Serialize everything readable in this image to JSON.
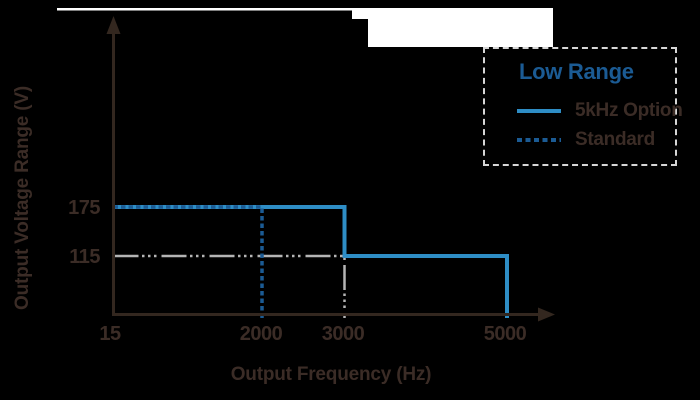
{
  "chart_data": {
    "type": "line",
    "subtype": "step",
    "xlabel": "Output Frequency (Hz)",
    "ylabel": "Output Voltage Range (V)",
    "x_range": [
      15,
      5000
    ],
    "y_range": [
      0,
      200
    ],
    "grid": false,
    "x_ticks": [
      {
        "value": 15,
        "label": "15"
      },
      {
        "value": 2000,
        "label": "2000"
      },
      {
        "value": 3000,
        "label": "3000"
      },
      {
        "value": 5000,
        "label": "5000"
      }
    ],
    "y_ticks": [
      {
        "value": 175,
        "label": "175"
      },
      {
        "value": 115,
        "label": "115"
      }
    ],
    "series": [
      {
        "name": "5kHz Option",
        "style": "solid",
        "color": "#2e8dc5",
        "points": [
          [
            15,
            175
          ],
          [
            3000,
            175
          ],
          [
            3000,
            115
          ],
          [
            5000,
            115
          ],
          [
            5000,
            0
          ]
        ]
      },
      {
        "name": "Standard",
        "style": "dashed",
        "color": "#1b5b94",
        "points": [
          [
            15,
            175
          ],
          [
            2000,
            175
          ],
          [
            2000,
            0
          ]
        ]
      }
    ],
    "guides": [
      {
        "name": "115V-3000Hz-guide",
        "style": "dash-dot",
        "color": "#b4b4b4",
        "points": [
          [
            15,
            115
          ],
          [
            3000,
            115
          ],
          [
            3000,
            0
          ]
        ]
      }
    ],
    "legend": {
      "title": "Low Range",
      "position": "top-right",
      "items": [
        {
          "label": "5kHz Option",
          "style": "solid"
        },
        {
          "label": "Standard",
          "style": "dashed"
        }
      ]
    }
  },
  "colors": {
    "background": "#000000",
    "axis": "#33271f",
    "text": "#3b2c26",
    "primary_blue": "#2e8dc5",
    "dark_blue": "#1b5b94",
    "guide_gray": "#b4b4b4",
    "legend_border": "#d6d6d6"
  }
}
